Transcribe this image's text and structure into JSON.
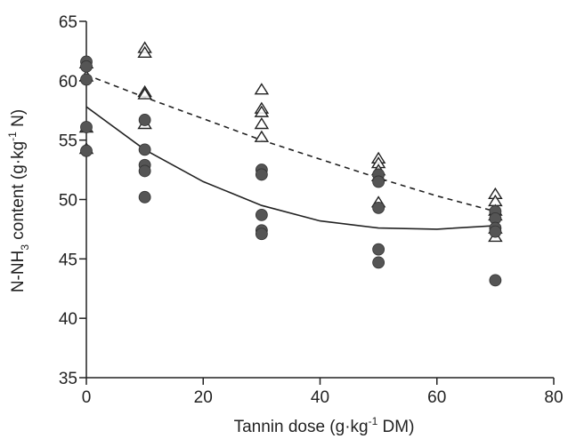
{
  "chart_data": {
    "type": "scatter",
    "xlabel": {
      "main": "Tannin dose (g·kg",
      "sup": "-1",
      "tail": " DM)"
    },
    "ylabel": {
      "part1": "N-NH",
      "sub": "3",
      "part2": " content (g·kg",
      "sup": "-1",
      "part3": " N)"
    },
    "xlim": [
      0,
      80
    ],
    "ylim": [
      35,
      65
    ],
    "xticks": [
      0,
      20,
      40,
      60,
      80
    ],
    "yticks": [
      35,
      40,
      45,
      50,
      55,
      60,
      65
    ],
    "grid": false,
    "series": [
      {
        "marker": "triangle-open",
        "color": "#222222",
        "points": [
          [
            0,
            61.4
          ],
          [
            0,
            60.3
          ],
          [
            0,
            56.0
          ],
          [
            0,
            54.2
          ],
          [
            10,
            62.7
          ],
          [
            10,
            62.3
          ],
          [
            10,
            59.0
          ],
          [
            10,
            58.8
          ],
          [
            10,
            56.3
          ],
          [
            30,
            59.2
          ],
          [
            30,
            57.6
          ],
          [
            30,
            57.3
          ],
          [
            30,
            56.3
          ],
          [
            30,
            55.2
          ],
          [
            50,
            53.4
          ],
          [
            50,
            53.0
          ],
          [
            50,
            52.4
          ],
          [
            50,
            51.9
          ],
          [
            50,
            49.7
          ],
          [
            70,
            50.4
          ],
          [
            70,
            49.8
          ],
          [
            70,
            49.0
          ],
          [
            70,
            48.6
          ],
          [
            70,
            47.5
          ],
          [
            70,
            46.8
          ]
        ],
        "trend": {
          "style": "dashed",
          "x": [
            0,
            10,
            20,
            30,
            40,
            50,
            60,
            70
          ],
          "y": [
            60.5,
            58.6,
            56.8,
            55.0,
            53.4,
            51.8,
            50.3,
            49.0
          ]
        }
      },
      {
        "marker": "circle-filled",
        "color": "#555555",
        "points": [
          [
            0,
            61.6
          ],
          [
            0,
            61.2
          ],
          [
            0,
            60.1
          ],
          [
            0,
            56.1
          ],
          [
            0,
            54.1
          ],
          [
            10,
            56.7
          ],
          [
            10,
            54.2
          ],
          [
            10,
            52.9
          ],
          [
            10,
            52.4
          ],
          [
            10,
            50.2
          ],
          [
            30,
            52.5
          ],
          [
            30,
            52.1
          ],
          [
            30,
            48.7
          ],
          [
            30,
            47.4
          ],
          [
            30,
            47.1
          ],
          [
            50,
            52.1
          ],
          [
            50,
            51.5
          ],
          [
            50,
            49.3
          ],
          [
            50,
            45.8
          ],
          [
            50,
            44.7
          ],
          [
            70,
            49.0
          ],
          [
            70,
            48.4
          ],
          [
            70,
            47.6
          ],
          [
            70,
            47.3
          ],
          [
            70,
            43.2
          ]
        ],
        "trend": {
          "style": "solid",
          "x": [
            0,
            10,
            20,
            30,
            40,
            50,
            60,
            70
          ],
          "y": [
            57.8,
            54.2,
            51.5,
            49.5,
            48.2,
            47.6,
            47.5,
            47.8
          ]
        }
      }
    ]
  }
}
